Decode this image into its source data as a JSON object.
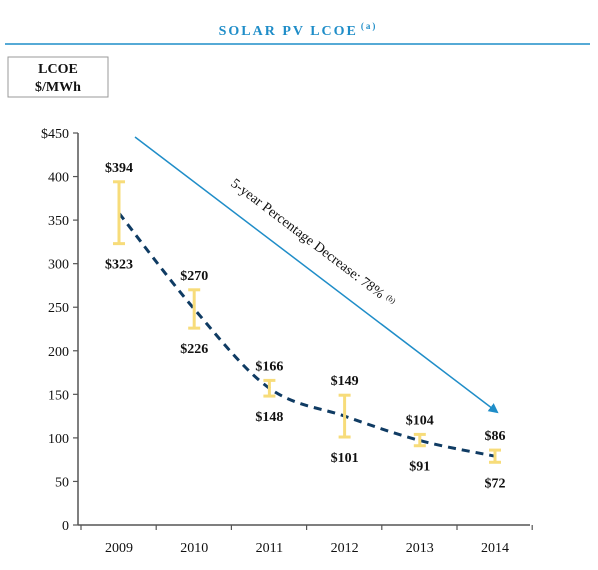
{
  "colors": {
    "title": "#1f8dc8",
    "title_rule": "#1f8dc8",
    "range_bar": "#f7dc7a",
    "trend_line": "#0f3b63",
    "arrow": "#1f8dc8",
    "axis": "#555555",
    "text": "#111111"
  },
  "chart_data": {
    "type": "range-bar",
    "title": "SOLAR PV LCOE",
    "title_superscript": "(a)",
    "unit_label_line1": "LCOE",
    "unit_label_line2": "$/MWh",
    "categories": [
      "2009",
      "2010",
      "2011",
      "2012",
      "2013",
      "2014"
    ],
    "series": [
      {
        "name": "",
        "low": [
          323,
          226,
          148,
          101,
          91,
          72
        ],
        "high": [
          394,
          270,
          166,
          149,
          104,
          86
        ]
      }
    ],
    "low_labels": [
      "$323",
      "$226",
      "$148",
      "$101",
      "$91",
      "$72"
    ],
    "high_labels": [
      "$394",
      "$270",
      "$166",
      "$149",
      "$104",
      "$86"
    ],
    "trend_line": {
      "style": "dashed",
      "values": [
        358,
        248,
        157,
        125,
        97,
        79
      ]
    },
    "y_ticks": [
      0,
      50,
      100,
      150,
      200,
      250,
      300,
      350,
      400,
      450
    ],
    "y_tick_labels": [
      "0",
      "50",
      "100",
      "150",
      "200",
      "250",
      "300",
      "350",
      "400",
      "$450"
    ],
    "ylim": [
      0,
      450
    ],
    "grid": false,
    "legend": "none",
    "annotation": {
      "text": "5-year Percentage Decrease: 78%",
      "superscript": "(b)"
    }
  }
}
